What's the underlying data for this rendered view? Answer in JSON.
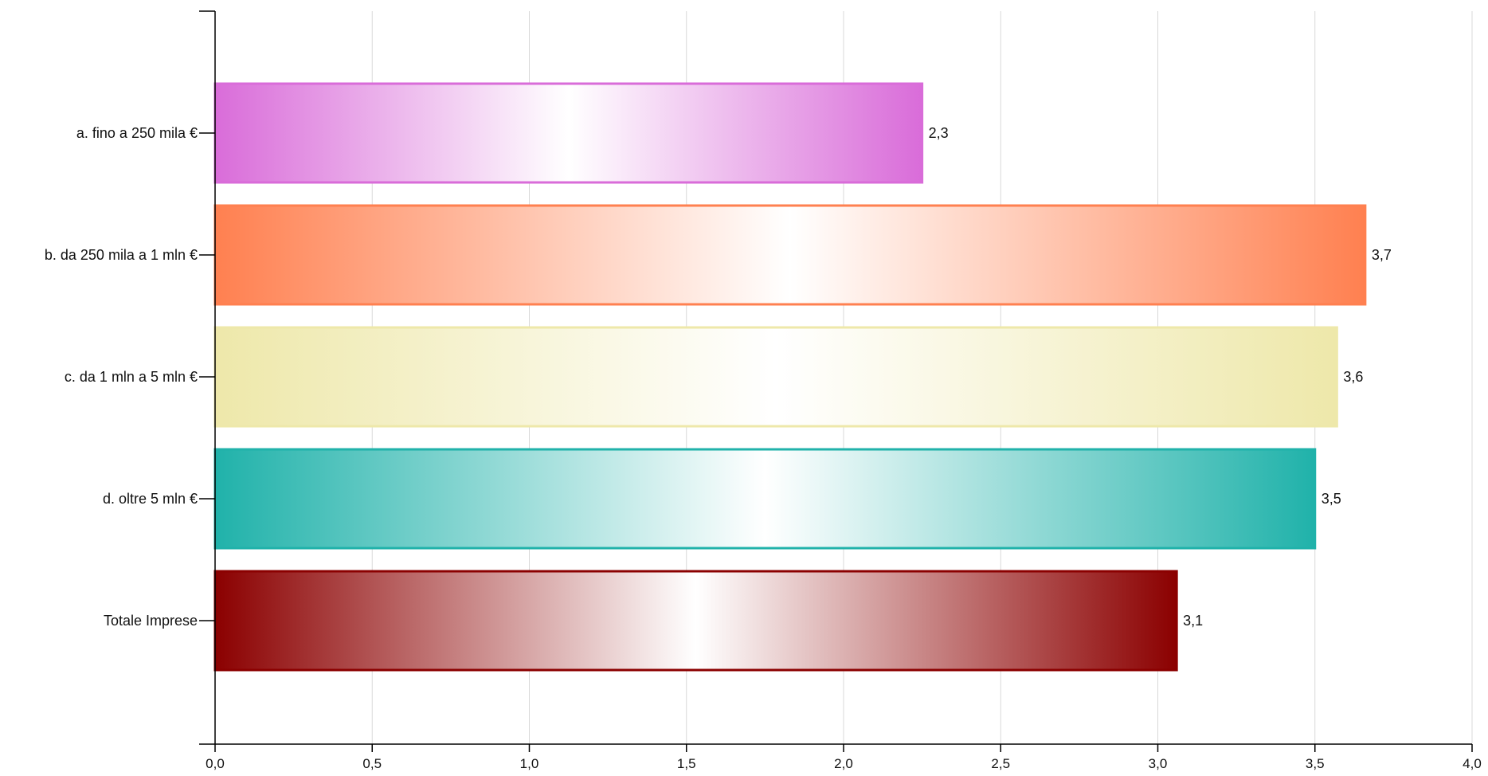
{
  "chart_data": {
    "type": "bar",
    "orientation": "horizontal",
    "title": "",
    "xlabel": "",
    "ylabel": "",
    "xlim": [
      0,
      4
    ],
    "x_ticks": [
      0,
      0.5,
      1,
      1.5,
      2,
      2.5,
      3,
      3.5,
      4
    ],
    "x_tick_labels": [
      "0,0",
      "0,5",
      "1,0",
      "1,5",
      "2,0",
      "2,5",
      "3,0",
      "3,5",
      "4,0"
    ],
    "grid": {
      "vertical": true,
      "horizontal": false
    },
    "legend": "none",
    "categories": [
      "a. fino a 250 mila €",
      "b. da 250 mila a 1 mln €",
      "c. da 1 mln a 5 mln €",
      "d. oltre 5 mln €",
      "Totale Imprese"
    ],
    "values": [
      2.25,
      3.66,
      3.57,
      3.5,
      3.06
    ],
    "value_labels": [
      "2,3",
      "3,7",
      "3,6",
      "3,5",
      "3,1"
    ],
    "colors": [
      "#d96cd9",
      "#ff8050",
      "#eee8aa",
      "#20b2aa",
      "#8b0000"
    ]
  }
}
